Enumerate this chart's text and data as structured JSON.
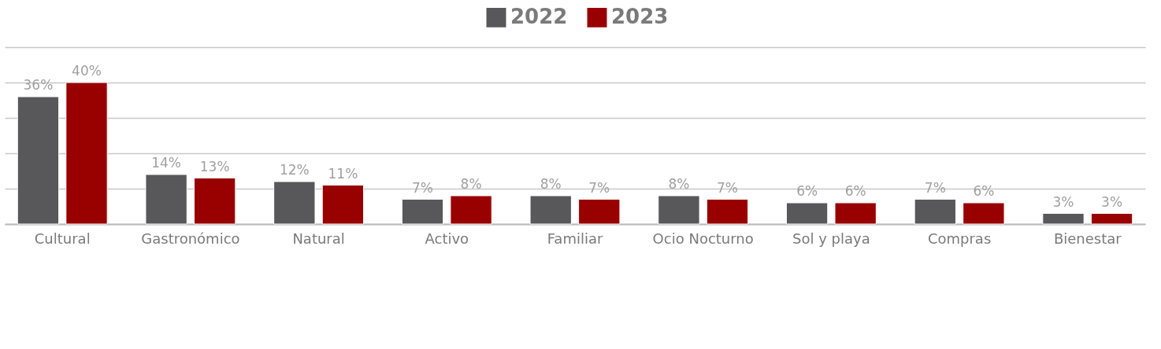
{
  "chart_data": {
    "type": "bar",
    "categories": [
      "Cultural",
      "Gastronómico",
      "Natural",
      "Activo",
      "Familiar",
      "Ocio Nocturno",
      "Sol y playa",
      "Compras",
      "Bienestar"
    ],
    "series": [
      {
        "name": "2022",
        "color": "#58585a",
        "values": [
          36,
          14,
          12,
          7,
          8,
          8,
          6,
          7,
          3
        ],
        "value_labels": [
          "36%",
          "14%",
          "12%",
          "7%",
          "8%",
          "8%",
          "6%",
          "7%",
          "3%"
        ]
      },
      {
        "name": "2023",
        "color": "#990000",
        "values": [
          40,
          13,
          11,
          8,
          7,
          7,
          6,
          6,
          3
        ],
        "value_labels": [
          "40%",
          "13%",
          "11%",
          "8%",
          "7%",
          "7%",
          "6%",
          "6%",
          "3%"
        ]
      }
    ],
    "ylim": [
      0,
      50
    ],
    "yticks": [
      {
        "value": 0,
        "label": null
      },
      {
        "value": 10,
        "label": null
      },
      {
        "value": 20,
        "label": null
      },
      {
        "value": 30,
        "label": null
      },
      {
        "value": 40,
        "label": null
      },
      {
        "value": 50,
        "label": null
      }
    ],
    "tick_labels": "x",
    "grid": "y",
    "legend": "top"
  }
}
